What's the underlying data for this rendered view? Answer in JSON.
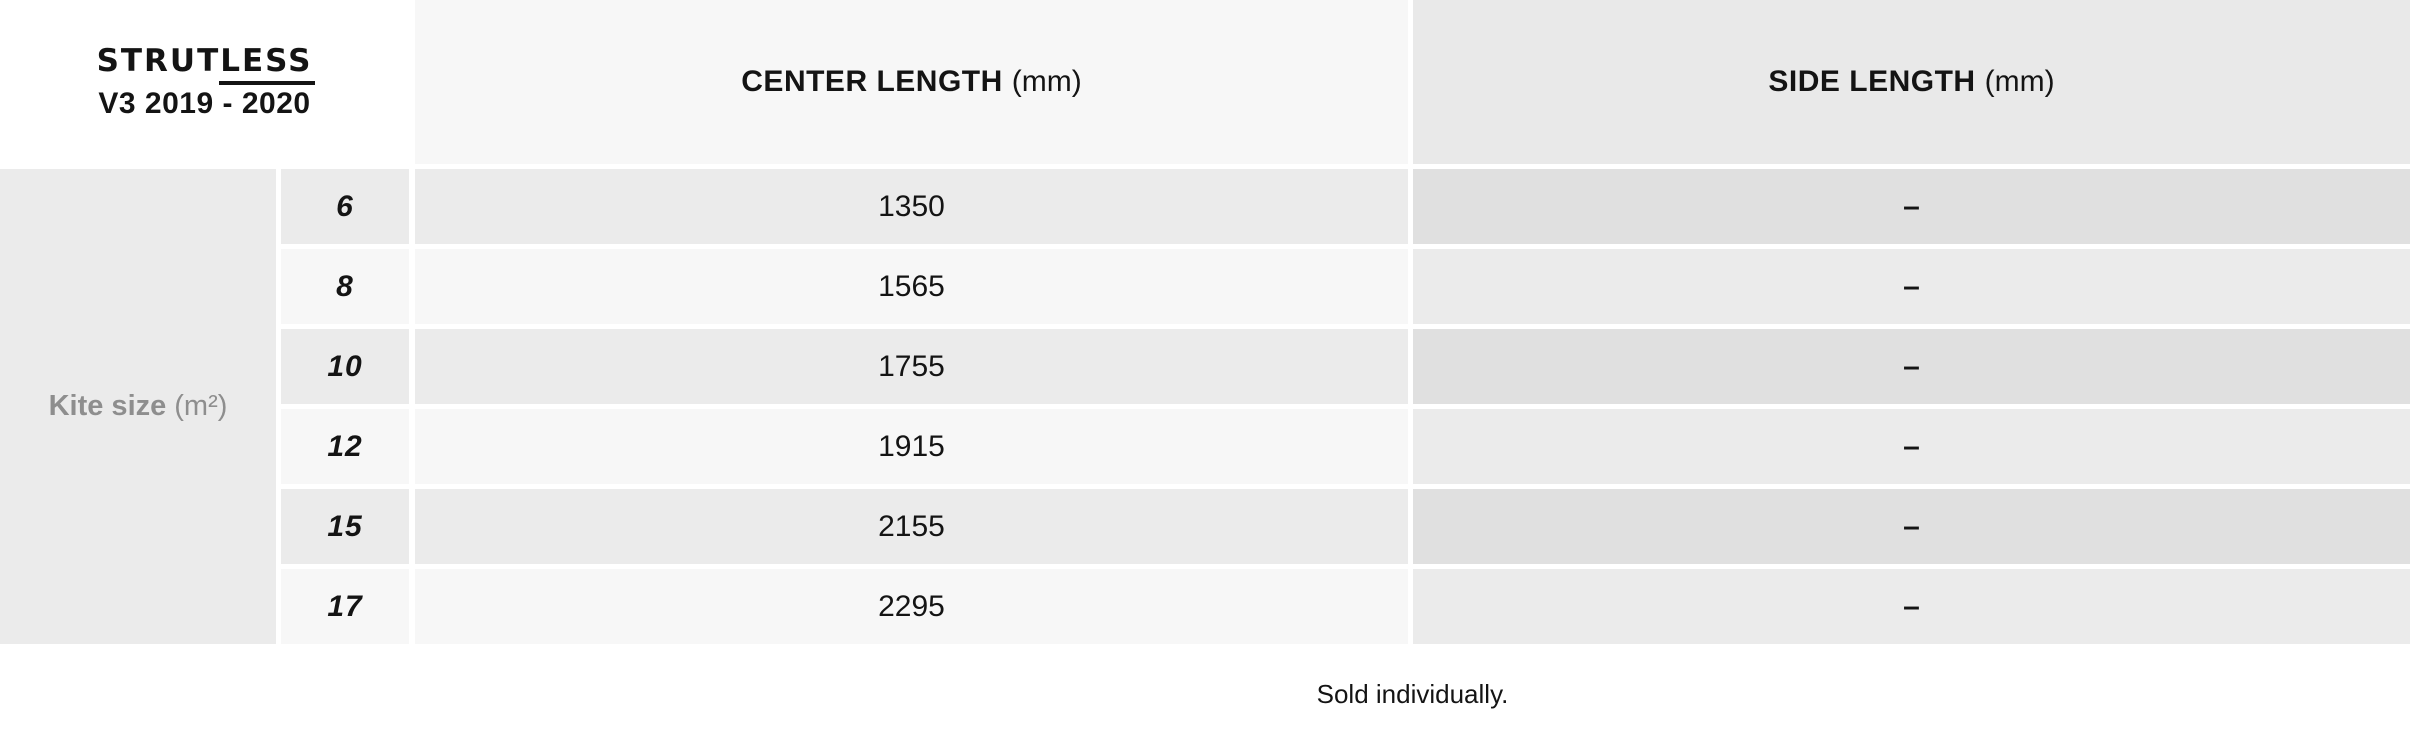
{
  "brand": {
    "logo_main": "STRUT",
    "logo_underlined": "LESS",
    "version": "V3 2019 - 2020"
  },
  "table": {
    "col_headers": {
      "center": {
        "label": "CENTER LENGTH",
        "unit": "(mm)"
      },
      "side": {
        "label": "SIDE LENGTH",
        "unit": "(mm)"
      }
    },
    "row_header": {
      "label": "Kite size",
      "unit": "(m²)"
    },
    "rows": [
      {
        "size": "6",
        "center": "1350",
        "side": "–"
      },
      {
        "size": "8",
        "center": "1565",
        "side": "–"
      },
      {
        "size": "10",
        "center": "1755",
        "side": "–"
      },
      {
        "size": "12",
        "center": "1915",
        "side": "–"
      },
      {
        "size": "15",
        "center": "2155",
        "side": "–"
      },
      {
        "size": "17",
        "center": "2295",
        "side": "–"
      }
    ]
  },
  "footer": {
    "note": "Sold individually."
  },
  "colors": {
    "page_bg": "#ffffff",
    "header_center_bg": "#f7f7f7",
    "header_side_bg": "#e9e9e9",
    "row_dark_bg": "#ebebeb",
    "row_light_bg": "#f7f7f7",
    "side_row_dark_bg": "#e0e0e0",
    "side_row_light_bg": "#ebebeb",
    "text": "#141414",
    "muted_text": "#8e8e8e"
  },
  "chart_data": {
    "type": "table",
    "title": "STRUTLESS V3 2019 - 2020",
    "columns": [
      "Kite size (m²)",
      "CENTER LENGTH (mm)",
      "SIDE LENGTH (mm)"
    ],
    "rows": [
      [
        6,
        1350,
        "–"
      ],
      [
        8,
        1565,
        "–"
      ],
      [
        10,
        1755,
        "–"
      ],
      [
        12,
        1915,
        "–"
      ],
      [
        15,
        2155,
        "–"
      ],
      [
        17,
        2295,
        "–"
      ]
    ],
    "note": "Sold individually."
  }
}
